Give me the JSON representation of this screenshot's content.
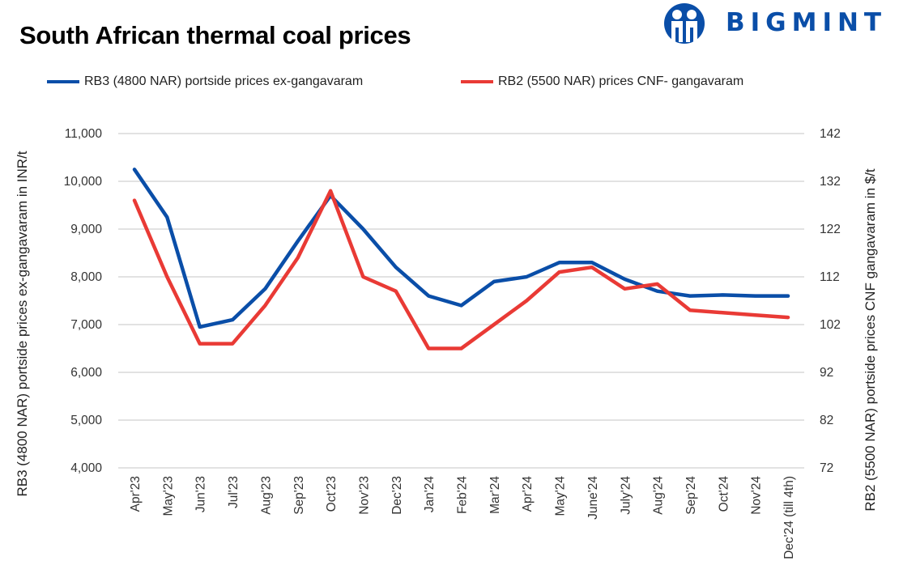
{
  "chart_data": {
    "type": "line",
    "title": "South African thermal coal prices",
    "categories": [
      "Apr'23",
      "May'23",
      "Jun'23",
      "Jul'23",
      "Aug'23",
      "Sep'23",
      "Oct'23",
      "Nov'23",
      "Dec'23",
      "Jan'24",
      "Feb'24",
      "Mar'24",
      "Apr'24",
      "May'24",
      "June'24",
      "July'24",
      "Aug'24",
      "Sep'24",
      "Oct'24",
      "Nov'24",
      "Dec'24 (till 4th)"
    ],
    "series": [
      {
        "name": "RB3 (4800 NAR) portside prices ex-gangavaram",
        "axis": "left",
        "color": "#0a4ea8",
        "values": [
          10250,
          9250,
          6950,
          7100,
          7750,
          8750,
          9700,
          9000,
          8200,
          7600,
          7400,
          7900,
          8000,
          8300,
          8300,
          7950,
          7700,
          7600,
          7620,
          7600,
          7600
        ]
      },
      {
        "name": "RB2 (5500 NAR) prices CNF- gangavaram",
        "axis": "right",
        "color": "#e93a35",
        "values": [
          128,
          112,
          98,
          98,
          106,
          116,
          130,
          112,
          109,
          97,
          97,
          102,
          107,
          113,
          114,
          109.5,
          110.5,
          105,
          104.5,
          104,
          103.5
        ]
      }
    ],
    "ylabel": "RB3 (4800 NAR) portside prices ex-gangavaram  in INR/t",
    "y2label": "RB2 (5500 NAR) portside prices CNF  gangavaram  in $/t",
    "ylim": [
      4000,
      11000
    ],
    "y_ticks": [
      "4,000",
      "5,000",
      "6,000",
      "7,000",
      "8,000",
      "9,000",
      "10,000",
      "11,000"
    ],
    "y2lim": [
      72,
      142
    ],
    "y2_ticks": [
      "72",
      "82",
      "92",
      "102",
      "112",
      "122",
      "132",
      "142"
    ],
    "grid": true,
    "legend_position": "top"
  },
  "logo": {
    "text": "BIGMINT",
    "color": "#0a4ea8"
  }
}
